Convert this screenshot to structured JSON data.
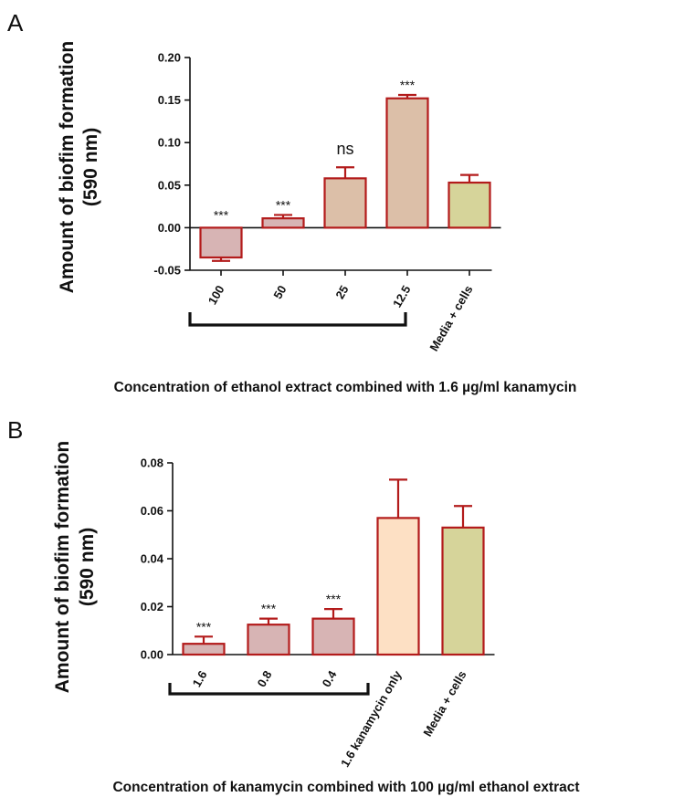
{
  "chart_data": [
    {
      "panel": "A",
      "type": "bar",
      "ylabel": "Amount of biofim formation",
      "ylabel2": "(590 nm)",
      "xlabel": "Concentration of ethanol extract combined with 1.6 µg/ml kanamycin",
      "ylim": [
        -0.05,
        0.2
      ],
      "yticks": [
        "0.20",
        "0.15",
        "0.10",
        "0.05",
        "0.00",
        "-0.05"
      ],
      "yticks_values": [
        0.2,
        0.15,
        0.1,
        0.05,
        0.0,
        -0.05
      ],
      "categories": [
        "100",
        "50",
        "25",
        "12.5",
        "Media + cells"
      ],
      "values": [
        -0.035,
        0.011,
        0.058,
        0.152,
        0.053
      ],
      "errors": [
        0.004,
        0.004,
        0.013,
        0.004,
        0.009
      ],
      "significance": [
        "***",
        "***",
        "ns",
        "***",
        ""
      ],
      "colors": [
        "#d7b4b4",
        "#d7b4b4",
        "#dcbfa8",
        "#dcbfa8",
        "#d6d49a"
      ],
      "edge_color": "#b31b1b"
    },
    {
      "panel": "B",
      "type": "bar",
      "ylabel": "Amount of biofim formation",
      "ylabel2": "(590 nm)",
      "xlabel": "Concentration of kanamycin combined with 100 µg/ml ethanol extract",
      "ylim": [
        0,
        0.08
      ],
      "yticks": [
        "0.08",
        "0.06",
        "0.04",
        "0.02",
        "0.00"
      ],
      "yticks_values": [
        0.08,
        0.06,
        0.04,
        0.02,
        0.0
      ],
      "categories": [
        "1.6",
        "0.8",
        "0.4",
        "1.6 kanamycin only",
        "Media + cells"
      ],
      "values": [
        0.0045,
        0.0125,
        0.015,
        0.057,
        0.053
      ],
      "errors": [
        0.003,
        0.0025,
        0.004,
        0.016,
        0.009
      ],
      "significance": [
        "***",
        "***",
        "***",
        "",
        ""
      ],
      "colors": [
        "#d7b4b4",
        "#d7b4b4",
        "#d7b4b4",
        "#fde0c4",
        "#d6d49a"
      ],
      "edge_color": "#b31b1b"
    }
  ]
}
